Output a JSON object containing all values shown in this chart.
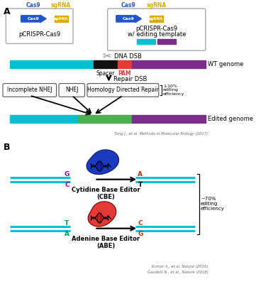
{
  "cas9_color": "#2255cc",
  "sgrna_color": "#ddaa00",
  "cyan_color": "#00c0d4",
  "purple_color": "#7b2d8b",
  "black_color": "#111111",
  "red_color": "#e53935",
  "green_color": "#4caf50",
  "blue_blob_color": "#1a3bbf",
  "red_blob_color": "#e53935",
  "dna_line_color": "#00c0d4",
  "gray_color": "#888888",
  "ref_A": "Tong J., et al. Methods in Molecular Biology (2017)",
  "ref_B1": "Komor A., et al. Nature (2016)",
  "ref_B2": "Gaudelli N., et al., Nature (2018)",
  "eff_1_10": "1-10%\nediting\nefficiency",
  "eff_70": "~70%\nediting\nefficiency",
  "label_cbe": "Cytidine Base Editor\n(CBE)",
  "label_abe": "Adenine Base Editor\n(ABE)",
  "label_wt": "WT genome",
  "label_edited": "Edited genome",
  "label_dna_dsb": "DNA DSB",
  "label_repair": "Repair DSB",
  "label_spacer": "Spacer",
  "label_pam": "PAM",
  "box1": "Incomplete NHEJ",
  "box2": "NHEJ",
  "box3": "Homology Directed Repair",
  "plas1": "pCRISPR-Cas9",
  "plas2_line1": "pCRISPR-Cas9",
  "plas2_line2": "w/ editing template",
  "cas9_label": "Cas9",
  "sgrna_label": "sgRNA"
}
